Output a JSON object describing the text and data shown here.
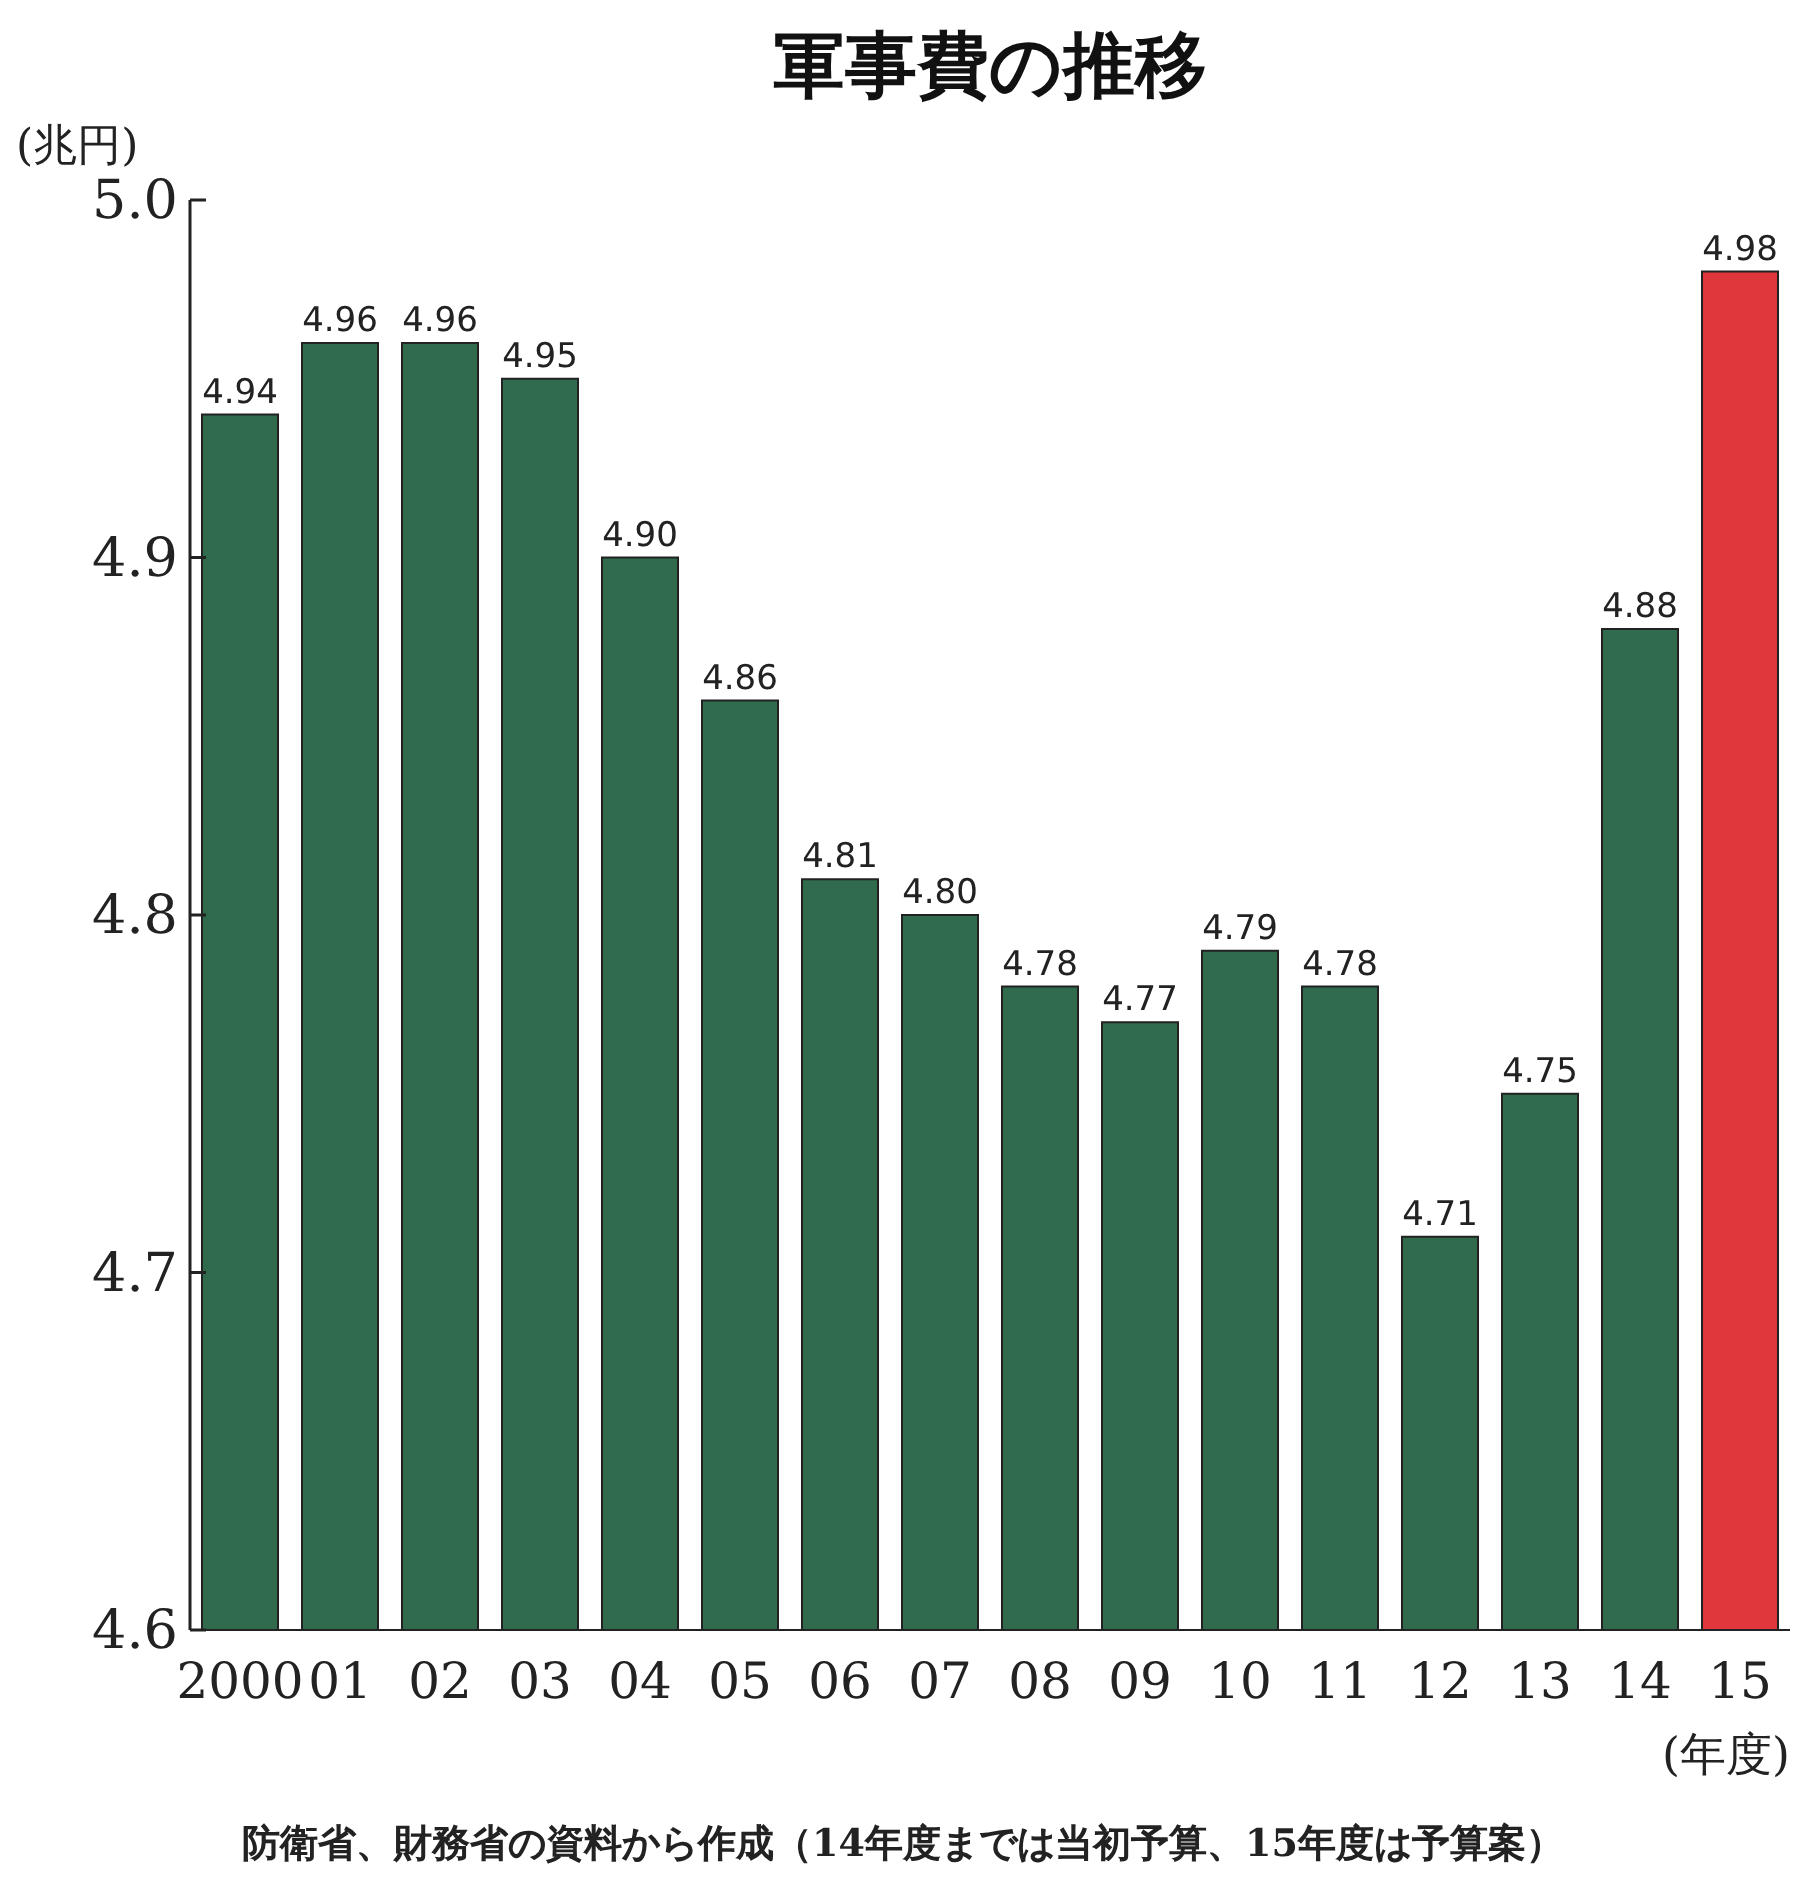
{
  "chart_data": {
    "type": "bar",
    "title": "軍事費の推移",
    "ylabel": "(兆円)",
    "xlabel": "(年度)",
    "categories": [
      "2000",
      "01",
      "02",
      "03",
      "04",
      "05",
      "06",
      "07",
      "08",
      "09",
      "10",
      "11",
      "12",
      "13",
      "14",
      "15"
    ],
    "values": [
      4.94,
      4.96,
      4.96,
      4.95,
      4.9,
      4.86,
      4.81,
      4.8,
      4.78,
      4.77,
      4.79,
      4.78,
      4.71,
      4.75,
      4.88,
      4.98
    ],
    "value_labels": [
      "4.94",
      "4.96",
      "4.96",
      "4.95",
      "4.90",
      "4.86",
      "4.81",
      "4.80",
      "4.78",
      "4.77",
      "4.79",
      "4.78",
      "4.71",
      "4.75",
      "4.88",
      "4.98"
    ],
    "colors": [
      "#2f6b4c",
      "#2f6b4c",
      "#2f6b4c",
      "#2f6b4c",
      "#2f6b4c",
      "#2f6b4c",
      "#2f6b4c",
      "#2f6b4c",
      "#2f6b4c",
      "#2f6b4c",
      "#2f6b4c",
      "#2f6b4c",
      "#2f6b4c",
      "#2f6b4c",
      "#2f6b4c",
      "#e0373c"
    ],
    "ylim": [
      4.6,
      5.0
    ],
    "yticks": [
      4.6,
      4.7,
      4.8,
      4.9,
      {
        "value": 5.0,
        "label": "5.0"
      }
    ],
    "annotations": [
      "防衛省、財務省の資料から作成（14年度までは当初予算、15年度は予算案）"
    ]
  }
}
